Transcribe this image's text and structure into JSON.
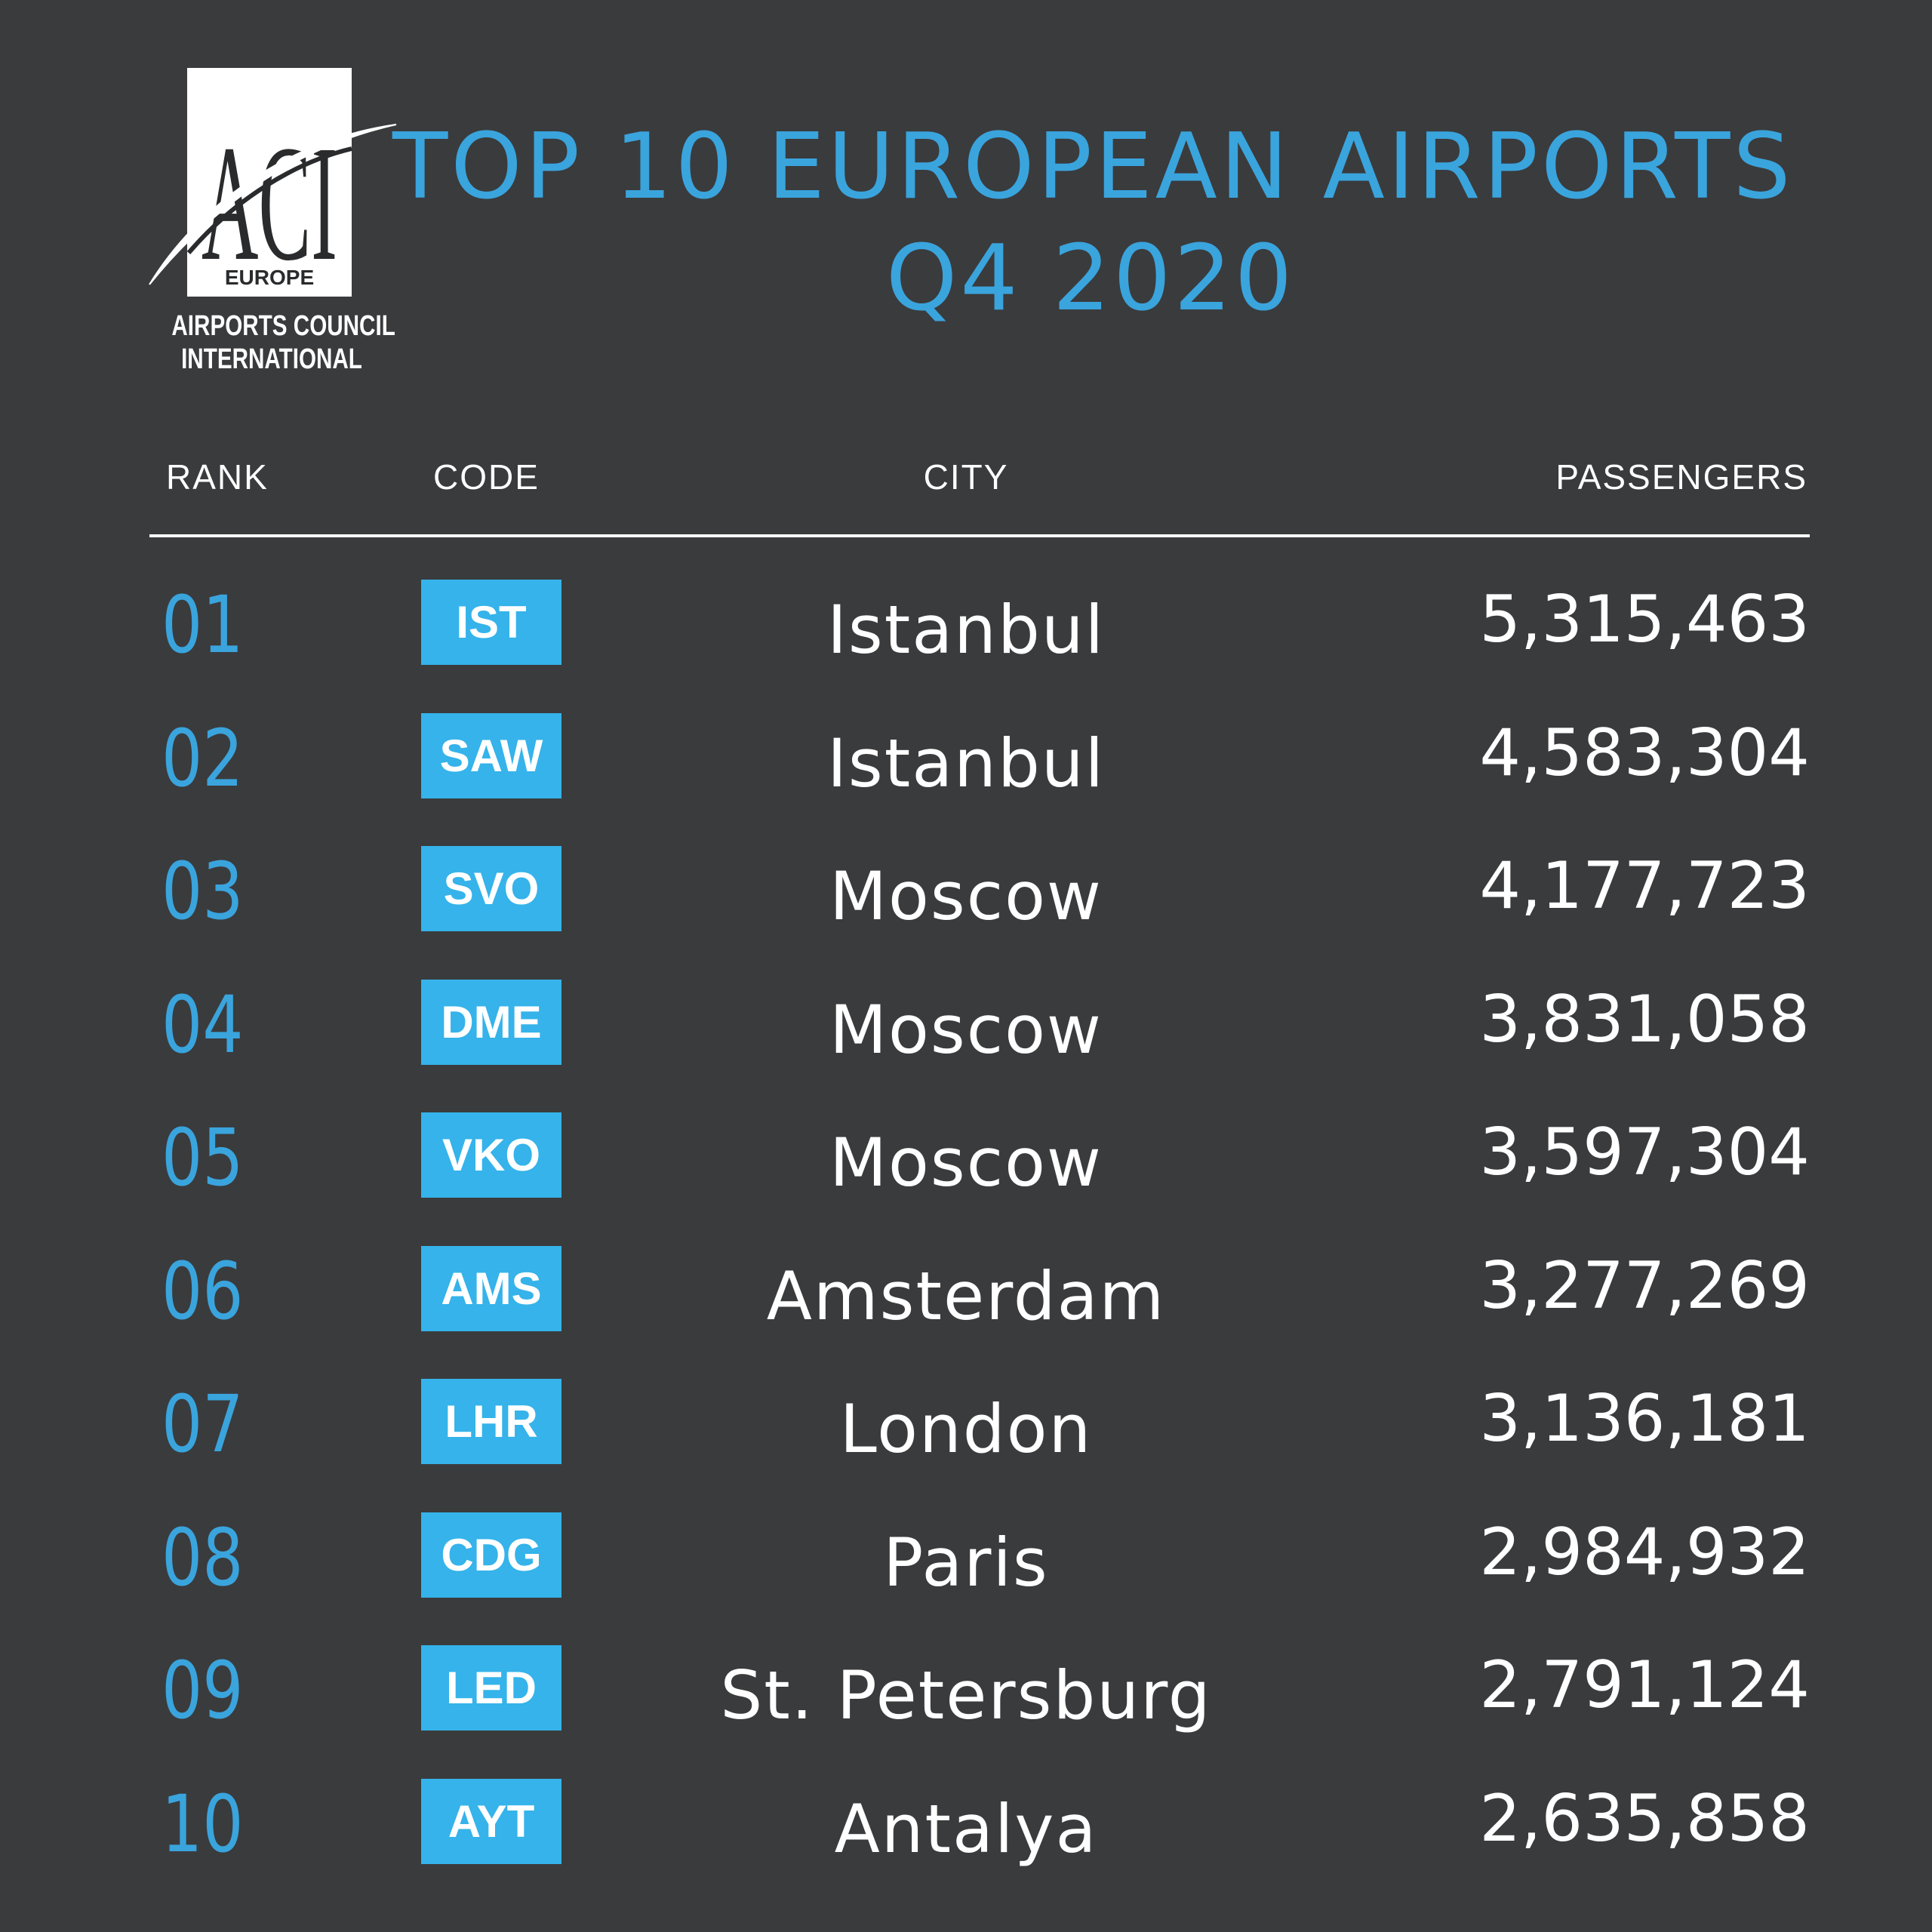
{
  "logo": {
    "mark": "ACI",
    "region": "EUROPE",
    "line1": "AIRPORTS COUNCIL",
    "line2": "INTERNATIONAL"
  },
  "title": {
    "line1": "TOP 10 EUROPEAN AIRPORTS",
    "line2": "Q4 2020"
  },
  "columns": {
    "rank": "RANK",
    "code": "CODE",
    "city": "CITY",
    "passengers": "PASSENGERS"
  },
  "colors": {
    "background": "#3a3b3d",
    "accent": "#3aa4dd",
    "code_box": "#35b3ea",
    "text": "#ffffff"
  },
  "chart_data": {
    "type": "table",
    "title": "TOP 10 EUROPEAN AIRPORTS Q4 2020",
    "columns": [
      "RANK",
      "CODE",
      "CITY",
      "PASSENGERS"
    ],
    "rows": [
      {
        "rank": "01",
        "code": "IST",
        "city": "Istanbul",
        "passengers": "5,315,463",
        "value": 5315463
      },
      {
        "rank": "02",
        "code": "SAW",
        "city": "Istanbul",
        "passengers": "4,583,304",
        "value": 4583304
      },
      {
        "rank": "03",
        "code": "SVO",
        "city": "Moscow",
        "passengers": "4,177,723",
        "value": 4177723
      },
      {
        "rank": "04",
        "code": "DME",
        "city": "Moscow",
        "passengers": "3,831,058",
        "value": 3831058
      },
      {
        "rank": "05",
        "code": "VKO",
        "city": "Moscow",
        "passengers": "3,597,304",
        "value": 3597304
      },
      {
        "rank": "06",
        "code": "AMS",
        "city": "Amsterdam",
        "passengers": "3,277,269",
        "value": 3277269
      },
      {
        "rank": "07",
        "code": "LHR",
        "city": "London",
        "passengers": "3,136,181",
        "value": 3136181
      },
      {
        "rank": "08",
        "code": "CDG",
        "city": "Paris",
        "passengers": "2,984,932",
        "value": 2984932
      },
      {
        "rank": "09",
        "code": "LED",
        "city": "St. Petersburg",
        "passengers": "2,791,124",
        "value": 2791124
      },
      {
        "rank": "10",
        "code": "AYT",
        "city": "Antalya",
        "passengers": "2,635,858",
        "value": 2635858
      }
    ]
  }
}
